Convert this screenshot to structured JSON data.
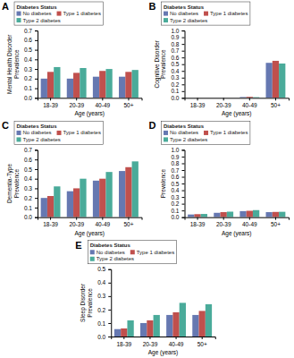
{
  "chart_data": [
    {
      "type": "bar",
      "title": "A",
      "xlabel": "Age (years)",
      "ylabel": "Mental Health Disorder Prevalence",
      "legend_title": "Diabetes Status",
      "legend": "upper left",
      "grid": false,
      "categories": [
        "18-39",
        "20-39",
        "40-49",
        "50+"
      ],
      "series": [
        {
          "name": "No diabetes",
          "color": "#6678b1",
          "values": [
            0.2,
            0.2,
            0.22,
            0.22
          ]
        },
        {
          "name": "Type 1 diabetes",
          "color": "#c0504d",
          "values": [
            0.27,
            0.26,
            0.28,
            0.27
          ]
        },
        {
          "name": "Type 2 diabetes",
          "color": "#4aab9a",
          "values": [
            0.32,
            0.31,
            0.3,
            0.29
          ]
        }
      ],
      "ylim": [
        0.0,
        0.7
      ],
      "yticks": [
        {
          "value": 0.0,
          "label": "0.0"
        },
        0.1,
        0.2,
        0.3,
        0.4,
        0.5,
        0.6,
        0.7
      ]
    },
    {
      "type": "bar",
      "title": "B",
      "xlabel": "Age (years)",
      "ylabel": "Cognitive Disorder Prevalence",
      "legend_title": "Diabetes Status",
      "legend": "upper left",
      "grid": false,
      "categories": [
        "18-39",
        "20-39",
        "40-49",
        "50+"
      ],
      "series": [
        {
          "name": "No diabetes",
          "color": "#6678b1",
          "values": [
            0.001,
            0.001,
            0.012,
            0.52
          ]
        },
        {
          "name": "Type 1 diabetes",
          "color": "#c0504d",
          "values": [
            0.001,
            0.001,
            0.015,
            0.55
          ]
        },
        {
          "name": "Type 2 diabetes",
          "color": "#4aab9a",
          "values": [
            0.001,
            0.001,
            0.01,
            0.51
          ]
        }
      ],
      "ylim": [
        0.0,
        1.0
      ],
      "yticks": [
        {
          "value": 0.0,
          "label": "0.0"
        },
        0.1,
        0.2,
        0.3,
        0.4,
        0.5,
        0.6,
        0.7,
        0.8,
        0.9,
        {
          "value": 1.0,
          "label": "1.0"
        }
      ]
    },
    {
      "type": "bar",
      "title": "C",
      "xlabel": "Age (years)",
      "ylabel": "Dementia-Type Prevalence",
      "legend_title": "Diabetes Status",
      "legend": "upper left",
      "grid": false,
      "categories": [
        "18-39",
        "20-39",
        "40-49",
        "50+"
      ],
      "series": [
        {
          "name": "No diabetes",
          "color": "#6678b1",
          "values": [
            0.2,
            0.27,
            0.38,
            0.48
          ]
        },
        {
          "name": "Type 1 diabetes",
          "color": "#c0504d",
          "values": [
            0.22,
            0.3,
            0.4,
            0.52
          ]
        },
        {
          "name": "Type 2 diabetes",
          "color": "#4aab9a",
          "values": [
            0.32,
            0.4,
            0.47,
            0.58
          ]
        }
      ],
      "ylim": [
        0.0,
        0.7
      ],
      "yticks": [
        {
          "value": 0.0,
          "label": "0.0"
        },
        0.1,
        0.2,
        0.3,
        0.4,
        0.5,
        0.6,
        0.7
      ]
    },
    {
      "type": "bar",
      "title": "D",
      "xlabel": "Age (years)",
      "ylabel": "Prevalence",
      "legend_title": "Diabetes Status",
      "legend": "upper left",
      "grid": false,
      "categories": [
        "18-39",
        "20-39",
        "40-49",
        "50+"
      ],
      "series": [
        {
          "name": "No diabetes",
          "color": "#6678b1",
          "values": [
            0.04,
            0.065,
            0.09,
            0.075
          ]
        },
        {
          "name": "Type 1 diabetes",
          "color": "#c0504d",
          "values": [
            0.045,
            0.075,
            0.095,
            0.078
          ]
        },
        {
          "name": "Type 2 diabetes",
          "color": "#4aab9a",
          "values": [
            0.048,
            0.082,
            0.105,
            0.08
          ]
        }
      ],
      "ylim": [
        0.0,
        1.0
      ],
      "yticks": [
        {
          "value": 0.0,
          "label": "0.0"
        },
        0.1,
        0.2,
        0.3,
        0.4,
        0.5,
        0.6,
        0.7,
        0.8,
        0.9,
        {
          "value": 1.0,
          "label": "1.0"
        }
      ]
    },
    {
      "type": "bar",
      "title": "E",
      "xlabel": "Age (years)",
      "ylabel": "Sleep Disorder Prevalence",
      "legend_title": "Diabetes Status",
      "legend": "upper left",
      "grid": false,
      "categories": [
        "18-39",
        "20-39",
        "40-49",
        "50+"
      ],
      "series": [
        {
          "name": "No diabetes",
          "color": "#6678b1",
          "values": [
            0.055,
            0.1,
            0.16,
            0.16
          ]
        },
        {
          "name": "Type 1 diabetes",
          "color": "#c0504d",
          "values": [
            0.06,
            0.12,
            0.18,
            0.19
          ]
        },
        {
          "name": "Type 2 diabetes",
          "color": "#4aab9a",
          "values": [
            0.12,
            0.16,
            0.25,
            0.24
          ]
        }
      ],
      "ylim": [
        0.0,
        0.5
      ],
      "yticks": [
        {
          "value": 0.0,
          "label": "0.0"
        },
        0.1,
        0.2,
        0.3,
        0.4,
        0.5
      ]
    }
  ]
}
